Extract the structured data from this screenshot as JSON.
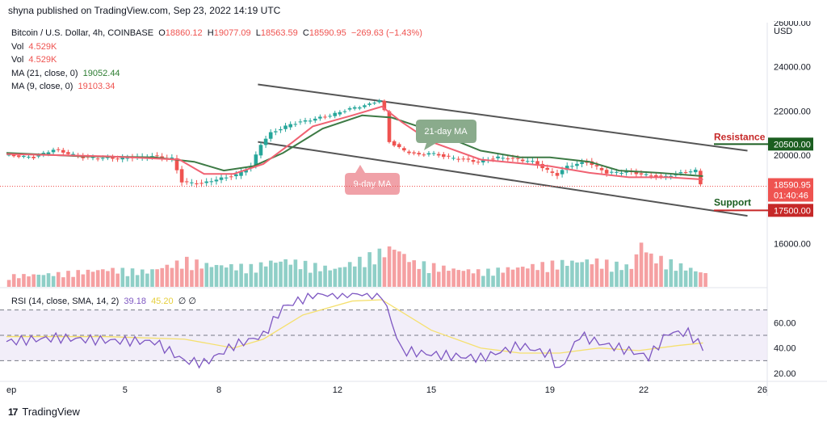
{
  "publisher": "shyna published on TradingView.com, Sep 23, 2022 14:19 UTC",
  "legend": {
    "symbol": "Bitcoin / U.S. Dollar, 4h, COINBASE",
    "open_label": "O",
    "open": "18860.12",
    "high_label": "H",
    "high": "19077.09",
    "low_label": "L",
    "low": "18563.59",
    "close_label": "C",
    "close": "18590.95",
    "change": "−269.63 (−1.43%)",
    "vol1_label": "Vol",
    "vol1": "4.529K",
    "vol2_label": "Vol",
    "vol2": "4.529K",
    "ma21_label": "MA (21, close, 0)",
    "ma21": "19052.44",
    "ma9_label": "MA (9, close, 0)",
    "ma9": "19103.34"
  },
  "rsi_legend": {
    "label": "RSI (14, close, SMA, 14, 2)",
    "value": "39.18",
    "value2": "45.20",
    "extra": "∅ ∅"
  },
  "footer": {
    "brand": "TradingView",
    "logo": "17"
  },
  "colors": {
    "up": "#26a69a",
    "down": "#ef5350",
    "ma9": "#f06272",
    "ma21": "#3d7a45",
    "rsi": "#7e57c2",
    "rsi_ma": "#f5e06e",
    "channel": "#555555",
    "resistance": "#1b5e20",
    "support": "#c62828"
  },
  "chart_data": {
    "type": "candlestick",
    "currency": "USD",
    "ylim": [
      14000,
      26000
    ],
    "yticks": [
      "26000.00",
      "24000.00",
      "22000.00",
      "20000.00",
      "16000.00"
    ],
    "ytick_values": [
      26000,
      24000,
      22000,
      20000,
      16000
    ],
    "xticks": [
      "ep",
      "5",
      "8",
      "12",
      "15",
      "19",
      "22",
      "26"
    ],
    "xtick_index": [
      0,
      24,
      43,
      67,
      86,
      110,
      129,
      153
    ],
    "price_path": [
      [
        0,
        20000
      ],
      [
        6,
        19900
      ],
      [
        10,
        20250
      ],
      [
        16,
        19900
      ],
      [
        23,
        19850
      ],
      [
        30,
        19950
      ],
      [
        34,
        19850
      ],
      [
        36,
        18800
      ],
      [
        40,
        18700
      ],
      [
        42,
        18850
      ],
      [
        47,
        19100
      ],
      [
        50,
        19500
      ],
      [
        52,
        20500
      ],
      [
        54,
        21000
      ],
      [
        58,
        21400
      ],
      [
        62,
        21600
      ],
      [
        66,
        21800
      ],
      [
        70,
        22100
      ],
      [
        74,
        22300
      ],
      [
        76,
        22500
      ],
      [
        77,
        22000
      ],
      [
        78,
        20600
      ],
      [
        81,
        20200
      ],
      [
        84,
        20000
      ],
      [
        86,
        20100
      ],
      [
        90,
        19900
      ],
      [
        96,
        19700
      ],
      [
        100,
        19900
      ],
      [
        104,
        19800
      ],
      [
        107,
        19700
      ],
      [
        110,
        19300
      ],
      [
        112,
        19100
      ],
      [
        114,
        19500
      ],
      [
        118,
        19700
      ],
      [
        122,
        19200
      ],
      [
        126,
        19250
      ],
      [
        130,
        19100
      ],
      [
        133,
        19000
      ],
      [
        137,
        19200
      ],
      [
        140,
        19300
      ],
      [
        141,
        18700
      ]
    ],
    "ma9_path": [
      [
        0,
        20050
      ],
      [
        10,
        20000
      ],
      [
        20,
        19950
      ],
      [
        35,
        19800
      ],
      [
        40,
        19150
      ],
      [
        46,
        19150
      ],
      [
        52,
        19600
      ],
      [
        58,
        20600
      ],
      [
        62,
        21300
      ],
      [
        70,
        21800
      ],
      [
        76,
        22200
      ],
      [
        80,
        21500
      ],
      [
        86,
        20600
      ],
      [
        96,
        19800
      ],
      [
        110,
        19500
      ],
      [
        118,
        19200
      ],
      [
        126,
        19000
      ],
      [
        134,
        19000
      ],
      [
        141,
        18900
      ]
    ],
    "ma21_path": [
      [
        0,
        20100
      ],
      [
        15,
        19950
      ],
      [
        30,
        19900
      ],
      [
        38,
        19700
      ],
      [
        44,
        19300
      ],
      [
        50,
        19500
      ],
      [
        56,
        20100
      ],
      [
        64,
        21200
      ],
      [
        72,
        21800
      ],
      [
        78,
        21700
      ],
      [
        86,
        21100
      ],
      [
        96,
        20200
      ],
      [
        104,
        19900
      ],
      [
        110,
        19900
      ],
      [
        118,
        19700
      ],
      [
        124,
        19300
      ],
      [
        132,
        19200
      ],
      [
        141,
        19050
      ]
    ],
    "volume_path": [
      [
        0,
        0.25
      ],
      [
        10,
        0.3
      ],
      [
        20,
        0.4
      ],
      [
        28,
        0.35
      ],
      [
        36,
        0.6
      ],
      [
        40,
        0.5
      ],
      [
        50,
        0.45
      ],
      [
        52,
        0.55
      ],
      [
        56,
        0.6
      ],
      [
        66,
        0.4
      ],
      [
        78,
        0.9
      ],
      [
        82,
        0.55
      ],
      [
        90,
        0.4
      ],
      [
        96,
        0.35
      ],
      [
        104,
        0.45
      ],
      [
        112,
        0.55
      ],
      [
        118,
        0.6
      ],
      [
        126,
        0.45
      ],
      [
        128,
        1.0
      ],
      [
        130,
        0.7
      ],
      [
        134,
        0.55
      ],
      [
        141,
        0.3
      ]
    ],
    "rsi_path": [
      [
        0,
        45
      ],
      [
        10,
        48
      ],
      [
        20,
        46
      ],
      [
        30,
        45
      ],
      [
        36,
        30
      ],
      [
        40,
        28
      ],
      [
        46,
        42
      ],
      [
        52,
        50
      ],
      [
        56,
        72
      ],
      [
        62,
        82
      ],
      [
        70,
        83
      ],
      [
        76,
        82
      ],
      [
        80,
        38
      ],
      [
        86,
        35
      ],
      [
        96,
        32
      ],
      [
        104,
        42
      ],
      [
        110,
        35
      ],
      [
        112,
        22
      ],
      [
        116,
        50
      ],
      [
        120,
        44
      ],
      [
        126,
        38
      ],
      [
        130,
        33
      ],
      [
        134,
        52
      ],
      [
        138,
        52
      ],
      [
        141,
        40
      ]
    ],
    "rsi_ma_path": [
      [
        0,
        49
      ],
      [
        20,
        49
      ],
      [
        36,
        47
      ],
      [
        46,
        40
      ],
      [
        52,
        47
      ],
      [
        60,
        66
      ],
      [
        70,
        77
      ],
      [
        76,
        78
      ],
      [
        86,
        54
      ],
      [
        96,
        40
      ],
      [
        104,
        36
      ],
      [
        112,
        36
      ],
      [
        120,
        40
      ],
      [
        128,
        38
      ],
      [
        136,
        42
      ],
      [
        141,
        44
      ]
    ],
    "rsi_ylim": [
      15,
      85
    ],
    "rsi_ticks": [
      "60.00",
      "40.00",
      "20.00"
    ],
    "rsi_tick_values": [
      60,
      40,
      20
    ],
    "rsi_bands": [
      70,
      50,
      30
    ],
    "channel_upper": [
      [
        46,
        23200
      ],
      [
        150,
        20200
      ]
    ],
    "channel_lower": [
      [
        46,
        20600
      ],
      [
        150,
        17250
      ]
    ],
    "annotations": {
      "ma21_label": "21-day MA",
      "ma9_label": "9-day MA"
    },
    "resistance": {
      "label": "Resistance",
      "value": 20500,
      "tag": "20500.00"
    },
    "support": {
      "label": "Support",
      "value": 17500,
      "tag": "17500.00"
    },
    "last_price": {
      "value": 18590.95,
      "tag": "18590.95",
      "countdown": "01:40:46"
    }
  }
}
